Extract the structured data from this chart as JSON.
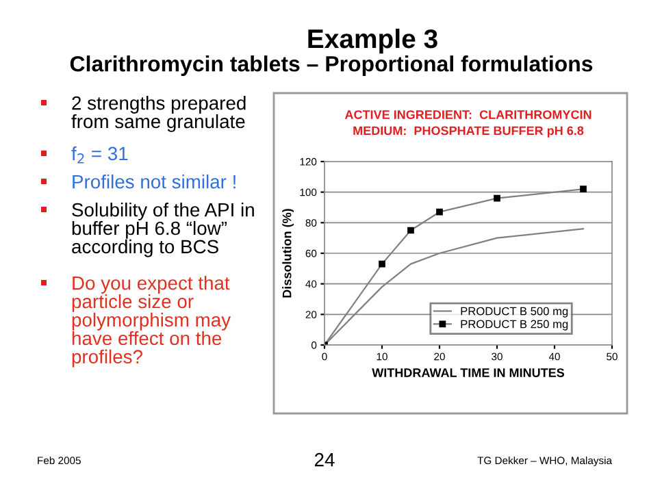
{
  "chart_data": {
    "type": "line",
    "title": "ACTIVE INGREDIENT:  CLARITHROMYCIN\nMEDIUM:  PHOSPHATE BUFFER pH 6.8",
    "xlabel": "WITHDRAWAL TIME IN MINUTES",
    "ylabel": "Dissolution (%)",
    "x": [
      0,
      10,
      15,
      20,
      30,
      45
    ],
    "series": [
      {
        "name": "PRODUCT B 500 mg",
        "color": "#808080",
        "values": [
          0,
          38,
          53,
          60,
          70,
          76
        ],
        "marker": "none"
      },
      {
        "name": "PRODUCT B 250 mg",
        "color": "#808080",
        "values": [
          0,
          53,
          75,
          87,
          96,
          102
        ],
        "marker": "square"
      }
    ],
    "xlim": [
      0,
      50
    ],
    "ylim": [
      0,
      120
    ],
    "xticks": [
      0,
      10,
      20,
      30,
      40,
      50
    ],
    "yticks": [
      0,
      20,
      40,
      60,
      80,
      100,
      120
    ],
    "grid": "y",
    "legend": "bottom right",
    "line_style": "solid",
    "annotations": [
      "Example 3",
      "Clarithromycin tablets – Proportional formulations",
      "2 strengths prepared\nfrom same granulate",
      "f$_{2}$ = 31",
      "Profiles not similar !",
      "Solubility of the API in\nbuffer pH 6.8 “low”\naccording to BCS",
      "Do you expect that\nparticle size or\npolymorphism may\nhave effect on the\nprofiles?",
      "Feb 2005",
      "24",
      "TG Dekker – WHO, Malaysia"
    ]
  }
}
